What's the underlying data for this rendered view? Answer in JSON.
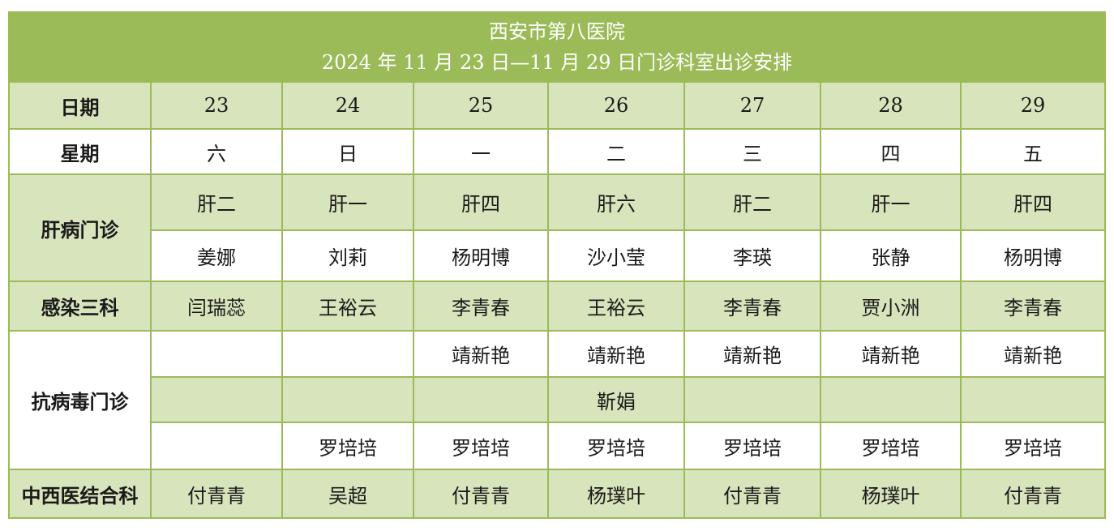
{
  "title": {
    "line1": "西安市第八医院",
    "line2": "2024 年 11 月 23 日—11 月 29 日门诊科室出诊安排"
  },
  "colors": {
    "header_bg": "#9bbb59",
    "band_green": "#d8e4bc",
    "band_white": "#ffffff",
    "border": "#9bbb59"
  },
  "labels": {
    "date": "日期",
    "weekday": "星期",
    "liver": "肝病门诊",
    "infection": "感染三科",
    "antiviral": "抗病毒门诊",
    "integrative": "中西医结合科"
  },
  "dates": [
    "23",
    "24",
    "25",
    "26",
    "27",
    "28",
    "29"
  ],
  "weekdays": [
    "六",
    "日",
    "一",
    "二",
    "三",
    "四",
    "五"
  ],
  "liver_rooms": [
    "肝二",
    "肝一",
    "肝四",
    "肝六",
    "肝二",
    "肝一",
    "肝四"
  ],
  "liver_doctors": [
    "姜娜",
    "刘莉",
    "杨明博",
    "沙小莹",
    "李瑛",
    "张静",
    "杨明博"
  ],
  "infection_doctors": [
    "闫瑞蕊",
    "王裕云",
    "李青春",
    "王裕云",
    "李青春",
    "贾小洲",
    "李青春"
  ],
  "antiviral_row1": [
    "",
    "",
    "靖新艳",
    "靖新艳",
    "靖新艳",
    "靖新艳",
    "靖新艳"
  ],
  "antiviral_row2": [
    "",
    "",
    "",
    "靳娟",
    "",
    "",
    ""
  ],
  "antiviral_row3": [
    "",
    "罗培培",
    "罗培培",
    "罗培培",
    "罗培培",
    "罗培培",
    "罗培培"
  ],
  "integrative_doctors": [
    "付青青",
    "吴超",
    "付青青",
    "杨璞叶",
    "付青青",
    "杨璞叶",
    "付青青"
  ]
}
